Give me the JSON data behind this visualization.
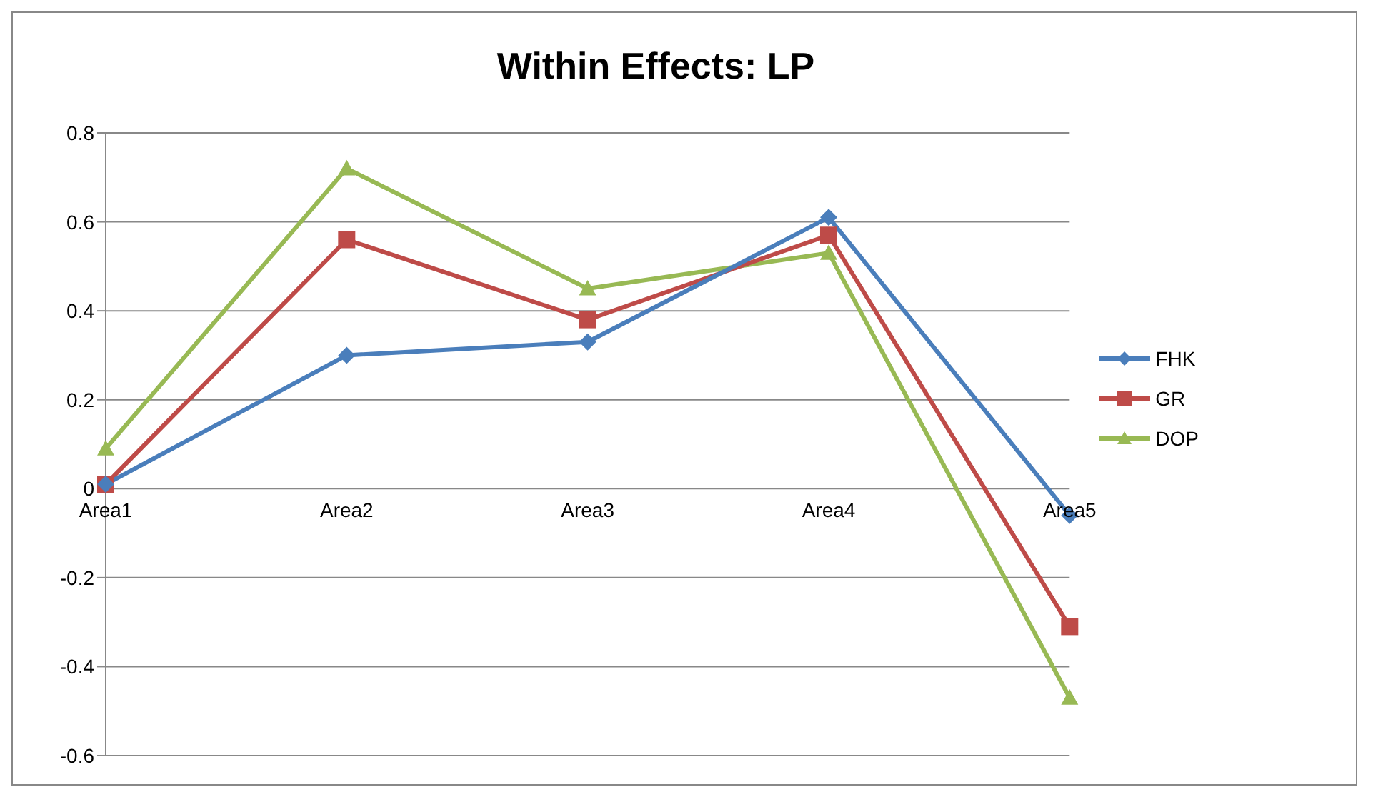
{
  "chart_data": {
    "type": "line",
    "title": "Within Effects: LP",
    "categories": [
      "Area1",
      "Area2",
      "Area3",
      "Area4",
      "Area5"
    ],
    "series": [
      {
        "name": "FHK",
        "color": "#4a7ebb",
        "marker": "diamond",
        "values": [
          0.01,
          0.3,
          0.33,
          0.61,
          -0.06
        ]
      },
      {
        "name": "GR",
        "color": "#be4b48",
        "marker": "square",
        "values": [
          0.01,
          0.56,
          0.38,
          0.57,
          -0.31
        ]
      },
      {
        "name": "DOP",
        "color": "#98b954",
        "marker": "triangle",
        "values": [
          0.09,
          0.72,
          0.45,
          0.53,
          -0.47
        ]
      }
    ],
    "ylim": [
      -0.6,
      0.8
    ],
    "yticks": [
      -0.6,
      -0.4,
      -0.2,
      0,
      0.2,
      0.4,
      0.6,
      0.8
    ],
    "grid": "y",
    "legend": "right"
  }
}
